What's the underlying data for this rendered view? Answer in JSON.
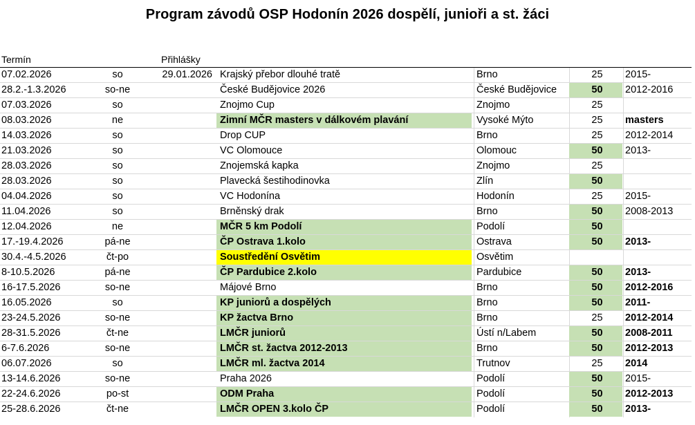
{
  "title": "Program závodů OSP Hodonín 2026 dospělí, junioři a st. žáci",
  "headers": {
    "date": "Termín",
    "registration": "Přihlášky"
  },
  "colors": {
    "green": "#c6e0b4",
    "yellow": "#ffff00"
  },
  "rows": [
    {
      "date": "07.02.2026",
      "day": "so",
      "reg": "29.01.2026",
      "name": "Krajský přebor dlouhé tratě",
      "name_bold": false,
      "name_hl": "",
      "place": "Brno",
      "pool": "25",
      "pool_hl": false,
      "cat": "2015-",
      "cat_bold": false
    },
    {
      "date": "28.2.-1.3.2026",
      "day": "so-ne",
      "reg": "",
      "name": "České Budějovice 2026",
      "name_bold": false,
      "name_hl": "",
      "place": "České Budějovice",
      "pool": "50",
      "pool_hl": true,
      "cat": "2012-2016",
      "cat_bold": false
    },
    {
      "date": "07.03.2026",
      "day": "so",
      "reg": "",
      "name": "Znojmo Cup",
      "name_bold": false,
      "name_hl": "",
      "place": "Znojmo",
      "pool": "25",
      "pool_hl": false,
      "cat": "",
      "cat_bold": false
    },
    {
      "date": "08.03.2026",
      "day": "ne",
      "reg": "",
      "name": "Zimní MČR masters v dálkovém plavání",
      "name_bold": true,
      "name_hl": "green",
      "place": "Vysoké Mýto",
      "pool": "25",
      "pool_hl": false,
      "cat": "masters",
      "cat_bold": true
    },
    {
      "date": "14.03.2026",
      "day": "so",
      "reg": "",
      "name": "Drop CUP",
      "name_bold": false,
      "name_hl": "",
      "place": "Brno",
      "pool": "25",
      "pool_hl": false,
      "cat": "2012-2014",
      "cat_bold": false
    },
    {
      "date": "21.03.2026",
      "day": "so",
      "reg": "",
      "name": "VC Olomouce",
      "name_bold": false,
      "name_hl": "",
      "place": "Olomouc",
      "pool": "50",
      "pool_hl": true,
      "cat": "2013-",
      "cat_bold": false
    },
    {
      "date": "28.03.2026",
      "day": "so",
      "reg": "",
      "name": "Znojemská kapka",
      "name_bold": false,
      "name_hl": "",
      "place": "Znojmo",
      "pool": "25",
      "pool_hl": false,
      "cat": "",
      "cat_bold": false
    },
    {
      "date": "28.03.2026",
      "day": "so",
      "reg": "",
      "name": "Plavecká šestihodinovka",
      "name_bold": false,
      "name_hl": "",
      "place": "Zlín",
      "pool": "50",
      "pool_hl": true,
      "cat": "",
      "cat_bold": false
    },
    {
      "date": "04.04.2026",
      "day": "so",
      "reg": "",
      "name": "VC Hodonína",
      "name_bold": false,
      "name_hl": "",
      "place": "Hodonín",
      "pool": "25",
      "pool_hl": false,
      "cat": "2015-",
      "cat_bold": false
    },
    {
      "date": "11.04.2026",
      "day": "so",
      "reg": "",
      "name": "Brněnský drak",
      "name_bold": false,
      "name_hl": "",
      "place": "Brno",
      "pool": "50",
      "pool_hl": true,
      "cat": "2008-2013",
      "cat_bold": false
    },
    {
      "date": "12.04.2026",
      "day": "ne",
      "reg": "",
      "name": "MČR 5 km Podolí",
      "name_bold": true,
      "name_hl": "green",
      "place": "Podolí",
      "pool": "50",
      "pool_hl": true,
      "cat": "",
      "cat_bold": false
    },
    {
      "date": "17.-19.4.2026",
      "day": "pá-ne",
      "reg": "",
      "name": "ČP Ostrava 1.kolo",
      "name_bold": true,
      "name_hl": "green",
      "place": "Ostrava",
      "pool": "50",
      "pool_hl": true,
      "cat": "2013-",
      "cat_bold": true
    },
    {
      "date": "30.4.-4.5.2026",
      "day": "čt-po",
      "reg": "",
      "name": "Soustředění Osvětim",
      "name_bold": true,
      "name_hl": "yellow",
      "place": "Osvětim",
      "pool": "",
      "pool_hl": false,
      "cat": "",
      "cat_bold": false
    },
    {
      "date": "8-10.5.2026",
      "day": "pá-ne",
      "reg": "",
      "name": "ČP Pardubice 2.kolo",
      "name_bold": true,
      "name_hl": "green",
      "place": "Pardubice",
      "pool": "50",
      "pool_hl": true,
      "cat": "2013-",
      "cat_bold": true
    },
    {
      "date": "16-17.5.2026",
      "day": "so-ne",
      "reg": "",
      "name": "Májové Brno",
      "name_bold": false,
      "name_hl": "",
      "place": "Brno",
      "pool": "50",
      "pool_hl": true,
      "cat": "2012-2016",
      "cat_bold": true
    },
    {
      "date": "16.05.2026",
      "day": "so",
      "reg": "",
      "name": "KP juniorů a dospělých",
      "name_bold": true,
      "name_hl": "green",
      "place": "Brno",
      "pool": "50",
      "pool_hl": true,
      "cat": "2011-",
      "cat_bold": true
    },
    {
      "date": "23-24.5.2026",
      "day": "so-ne",
      "reg": "",
      "name": "KP žactva Brno",
      "name_bold": true,
      "name_hl": "green",
      "place": "Brno",
      "pool": "25",
      "pool_hl": false,
      "cat": "2012-2014",
      "cat_bold": true
    },
    {
      "date": "28-31.5.2026",
      "day": "čt-ne",
      "reg": "",
      "name": "LMČR juniorů",
      "name_bold": true,
      "name_hl": "green",
      "place": "Ústí n/Labem",
      "pool": "50",
      "pool_hl": true,
      "cat": "2008-2011",
      "cat_bold": true
    },
    {
      "date": "6-7.6.2026",
      "day": "so-ne",
      "reg": "",
      "name": "LMČR st. žactva 2012-2013",
      "name_bold": true,
      "name_hl": "green",
      "place": "Brno",
      "pool": "50",
      "pool_hl": true,
      "cat": "2012-2013",
      "cat_bold": true
    },
    {
      "date": "06.07.2026",
      "day": "so",
      "reg": "",
      "name": "LMČR ml. žactva 2014",
      "name_bold": true,
      "name_hl": "green",
      "place": "Trutnov",
      "pool": "25",
      "pool_hl": false,
      "cat": "2014",
      "cat_bold": true
    },
    {
      "date": "13-14.6.2026",
      "day": "so-ne",
      "reg": "",
      "name": "Praha 2026",
      "name_bold": false,
      "name_hl": "",
      "place": "Podolí",
      "pool": "50",
      "pool_hl": true,
      "cat": "2015-",
      "cat_bold": false
    },
    {
      "date": "22-24.6.2026",
      "day": "po-st",
      "reg": "",
      "name": "ODM Praha",
      "name_bold": true,
      "name_hl": "green",
      "place": "Podolí",
      "pool": "50",
      "pool_hl": true,
      "cat": "2012-2013",
      "cat_bold": true
    },
    {
      "date": "25-28.6.2026",
      "day": "čt-ne",
      "reg": "",
      "name": "LMČR OPEN 3.kolo ČP",
      "name_bold": true,
      "name_hl": "green",
      "place": "Podolí",
      "pool": "50",
      "pool_hl": true,
      "cat": "2013-",
      "cat_bold": true
    }
  ]
}
